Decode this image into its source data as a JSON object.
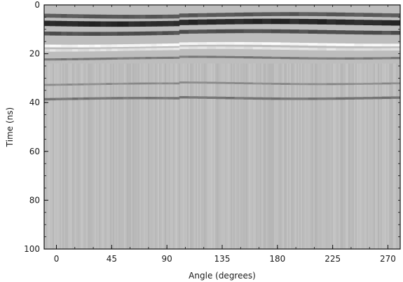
{
  "chart_data": {
    "type": "heatmap",
    "xlabel": "Angle (degrees)",
    "ylabel": "Time (ns)",
    "xlim": [
      -10,
      280
    ],
    "ylim": [
      0,
      100
    ],
    "y_inverted": true,
    "x_ticks": [
      0,
      45,
      90,
      135,
      180,
      225,
      270
    ],
    "y_ticks": [
      0,
      20,
      40,
      60,
      80,
      100
    ],
    "colormap": "grayscale",
    "colors": {
      "background": "#bdbdbd",
      "dark": "#2a2a2a",
      "light": "#f4f4f4"
    },
    "section_breaks_deg": [
      100
    ],
    "bands": [
      {
        "time_ns": 4.5,
        "width_ns": 1.6,
        "gray": 0.35
      },
      {
        "time_ns": 7.5,
        "width_ns": 2.2,
        "gray": 0.16
      },
      {
        "time_ns": 11.5,
        "width_ns": 1.6,
        "gray": 0.32
      },
      {
        "time_ns": 16.5,
        "width_ns": 1.1,
        "gray": 0.96
      },
      {
        "time_ns": 18.3,
        "width_ns": 1.0,
        "gray": 0.88
      },
      {
        "time_ns": 22.0,
        "width_ns": 0.9,
        "gray": 0.48
      },
      {
        "time_ns": 32.5,
        "width_ns": 0.8,
        "gray": 0.55
      },
      {
        "time_ns": 38.5,
        "width_ns": 1.0,
        "gray": 0.46
      }
    ],
    "noise_background_gray": 0.74
  }
}
